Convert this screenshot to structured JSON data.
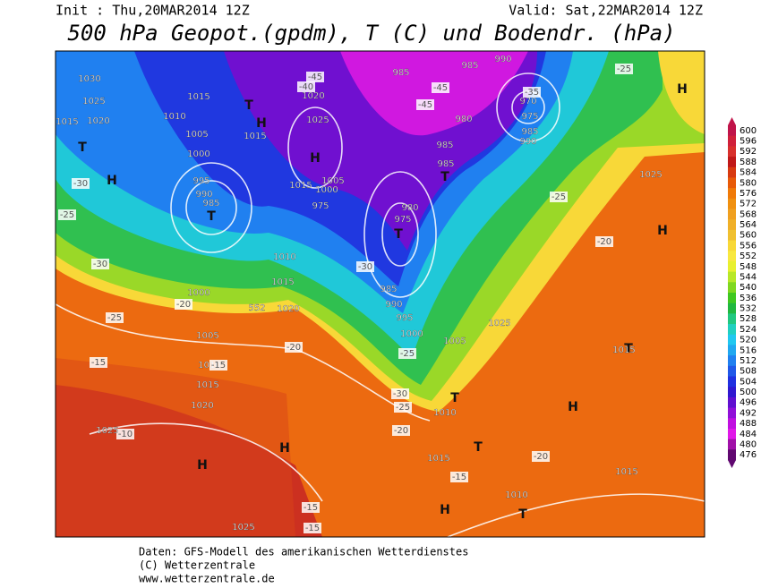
{
  "header": {
    "init": "Init : Thu,20MAR2014 12Z",
    "valid": "Valid: Sat,22MAR2014 12Z",
    "title": "500 hPa Geopot.(gpdm), T (C) und Bodendr. (hPa)"
  },
  "footer": [
    "Daten: GFS-Modell des amerikanischen Wetterdienstes",
    "(C) Wetterzentrale",
    "www.wetterzentrale.de"
  ],
  "colorbar": {
    "ticks": [
      600,
      596,
      592,
      588,
      584,
      580,
      576,
      572,
      568,
      564,
      560,
      556,
      552,
      548,
      544,
      540,
      536,
      532,
      528,
      524,
      520,
      516,
      512,
      508,
      504,
      500,
      496,
      492,
      488,
      484,
      480,
      476
    ],
    "colors": [
      "#c0144a",
      "#d0203a",
      "#d8302c",
      "#c01818",
      "#d83a10",
      "#e85a08",
      "#f07a08",
      "#f09010",
      "#f0a020",
      "#f0b028",
      "#f0c030",
      "#f8d838",
      "#f8e840",
      "#e8f030",
      "#b8e828",
      "#80d820",
      "#40c820",
      "#20b840",
      "#20c880",
      "#20d0c0",
      "#20c8f0",
      "#20a8f0",
      "#2080f0",
      "#2058e8",
      "#2030e0",
      "#3018d0",
      "#6010d0",
      "#9010d8",
      "#c010e0",
      "#e018e8",
      "#a010a8",
      "#600870"
    ]
  },
  "map_labels": [
    "1030",
    "1025",
    "1015",
    "1020",
    "T",
    "H",
    "-30",
    "-25",
    "-30",
    "1015",
    "1010",
    "T",
    "H",
    "1015",
    "1005",
    "1000",
    "995",
    "990",
    "985",
    "T",
    "1020",
    "1025",
    "H",
    "-45",
    "-40",
    "1005",
    "1000",
    "1015",
    "975",
    "985",
    "985",
    "990",
    "970",
    "975",
    "985",
    "990",
    "-35",
    "-45",
    "-45",
    "980",
    "985",
    "T",
    "985",
    "980",
    "975",
    "T",
    "-30",
    "985",
    "990",
    "995",
    "1000",
    "1005",
    "-25",
    "-30",
    "-25",
    "T",
    "1010",
    "1015",
    "-15",
    "1010",
    "T",
    "H",
    "H",
    "T",
    "-20",
    "1015",
    "T",
    "1015",
    "1025",
    "-25",
    "1025",
    "H",
    "-20",
    "H",
    "-25",
    "1000",
    "-20",
    "1005",
    "-25",
    "1010",
    "-15",
    "1015",
    "1020",
    "-10",
    "1025",
    "H",
    "H",
    "1025",
    "-15",
    "-15",
    "1010",
    "1015",
    "1020",
    "-20",
    "552",
    "-20",
    "-15"
  ]
}
